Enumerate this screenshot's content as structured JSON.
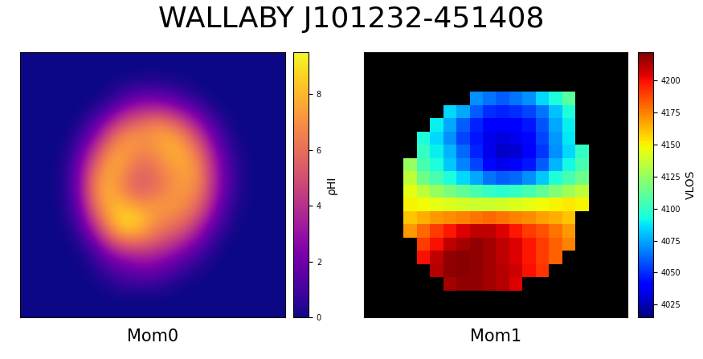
{
  "title": "WALLABY J101232-451408",
  "chart_data": [
    {
      "type": "heatmap",
      "xlabel": "Mom0",
      "colorbar_label": "ρHI",
      "color": "plasma",
      "tick_labels": false,
      "colorbar_range": [
        0,
        9.5
      ],
      "colorbar_ticks": [
        0,
        2,
        4,
        6,
        8
      ],
      "cells": [
        [
          0,
          0,
          0,
          0,
          0,
          0,
          0,
          0,
          0,
          0,
          0,
          0,
          0,
          0,
          0,
          0,
          0,
          0,
          0,
          0
        ],
        [
          0,
          0,
          0,
          0,
          0,
          0,
          0,
          0,
          0,
          0,
          0,
          0,
          0,
          0,
          0,
          0,
          0,
          0,
          0,
          0
        ],
        [
          0,
          0,
          0,
          0,
          0,
          0,
          0,
          0.2,
          0.5,
          0.6,
          0.6,
          0.4,
          0.2,
          0,
          0,
          0,
          0,
          0,
          0,
          0
        ],
        [
          0,
          0,
          0,
          0,
          0,
          0,
          0.3,
          1.0,
          1.8,
          2.2,
          2.0,
          1.6,
          1.0,
          0.4,
          0,
          0,
          0,
          0,
          0,
          0
        ],
        [
          0,
          0,
          0,
          0,
          0,
          0.4,
          1.4,
          2.8,
          3.8,
          4.2,
          4.4,
          3.8,
          2.8,
          1.6,
          0.5,
          0,
          0,
          0,
          0,
          0
        ],
        [
          0,
          0,
          0,
          0,
          0.3,
          1.4,
          3.2,
          5.0,
          5.8,
          6.4,
          6.8,
          6.2,
          5.0,
          3.2,
          1.4,
          0.3,
          0,
          0,
          0,
          0
        ],
        [
          0,
          0,
          0,
          0,
          0.8,
          2.6,
          5.0,
          6.6,
          7.2,
          7.0,
          7.4,
          7.6,
          6.6,
          4.8,
          2.4,
          0.8,
          0,
          0,
          0,
          0
        ],
        [
          0,
          0,
          0,
          0.2,
          1.6,
          4.0,
          6.4,
          7.4,
          7.0,
          6.6,
          7.2,
          7.8,
          7.4,
          6.0,
          3.4,
          1.2,
          0.2,
          0,
          0,
          0
        ],
        [
          0,
          0,
          0,
          0.3,
          2.2,
          5.2,
          7.2,
          7.6,
          6.4,
          6.0,
          6.6,
          7.4,
          7.6,
          6.6,
          4.0,
          1.6,
          0.3,
          0,
          0,
          0
        ],
        [
          0,
          0,
          0,
          0.4,
          2.6,
          6.0,
          7.6,
          7.0,
          5.8,
          5.6,
          6.2,
          7.0,
          7.4,
          6.8,
          4.2,
          1.8,
          0.4,
          0,
          0,
          0
        ],
        [
          0,
          0,
          0,
          0.4,
          2.6,
          6.2,
          7.8,
          7.2,
          6.0,
          5.8,
          6.4,
          7.0,
          7.2,
          6.4,
          4.0,
          1.6,
          0.3,
          0,
          0,
          0
        ],
        [
          0,
          0,
          0,
          0.3,
          2.2,
          5.6,
          7.6,
          8.0,
          7.4,
          7.0,
          7.2,
          7.2,
          6.8,
          5.8,
          3.4,
          1.2,
          0.2,
          0,
          0,
          0
        ],
        [
          0,
          0,
          0,
          0.2,
          1.6,
          4.6,
          7.0,
          8.6,
          8.8,
          7.8,
          7.0,
          6.6,
          6.0,
          4.6,
          2.4,
          0.8,
          0,
          0,
          0,
          0
        ],
        [
          0,
          0,
          0,
          0,
          0.8,
          3.0,
          5.8,
          7.6,
          8.0,
          7.2,
          6.2,
          5.6,
          4.8,
          3.2,
          1.4,
          0.4,
          0,
          0,
          0,
          0
        ],
        [
          0,
          0,
          0,
          0,
          0.3,
          1.6,
          3.6,
          5.2,
          5.6,
          5.4,
          4.8,
          4.0,
          3.0,
          1.8,
          0.6,
          0,
          0,
          0,
          0,
          0
        ],
        [
          0,
          0,
          0,
          0,
          0,
          0.6,
          1.8,
          2.8,
          3.2,
          3.4,
          3.0,
          2.4,
          1.6,
          0.8,
          0.2,
          0,
          0,
          0,
          0,
          0
        ],
        [
          0,
          0,
          0,
          0,
          0,
          0.2,
          0.8,
          1.4,
          1.8,
          2.0,
          1.8,
          1.2,
          0.6,
          0.2,
          0,
          0,
          0,
          0,
          0,
          0
        ],
        [
          0,
          0,
          0,
          0,
          0,
          0,
          0.2,
          0.6,
          0.8,
          0.8,
          0.6,
          0.3,
          0,
          0,
          0,
          0,
          0,
          0,
          0,
          0
        ],
        [
          0,
          0,
          0,
          0,
          0,
          0,
          0,
          0,
          0,
          0,
          0,
          0,
          0,
          0,
          0,
          0,
          0,
          0,
          0,
          0
        ],
        [
          0,
          0,
          0,
          0,
          0,
          0,
          0,
          0,
          0,
          0,
          0,
          0,
          0,
          0,
          0,
          0,
          0,
          0,
          0,
          0
        ]
      ]
    },
    {
      "type": "heatmap",
      "xlabel": "Mom1",
      "colorbar_label": "VLOS",
      "color": "jet",
      "tick_labels": false,
      "colorbar_range": [
        4015,
        4222
      ],
      "colorbar_ticks": [
        4025,
        4050,
        4075,
        4100,
        4125,
        4150,
        4175,
        4200
      ],
      "cells": [
        [
          null,
          null,
          null,
          null,
          null,
          null,
          null,
          null,
          null,
          null,
          null,
          null,
          null,
          null,
          null,
          null,
          null,
          null,
          null,
          null
        ],
        [
          null,
          null,
          null,
          null,
          null,
          null,
          null,
          null,
          null,
          null,
          null,
          null,
          null,
          null,
          null,
          null,
          null,
          null,
          null,
          null
        ],
        [
          null,
          null,
          null,
          null,
          null,
          null,
          null,
          null,
          null,
          null,
          null,
          null,
          null,
          null,
          null,
          null,
          null,
          null,
          null,
          null
        ],
        [
          null,
          null,
          null,
          null,
          null,
          null,
          null,
          null,
          4070,
          4065,
          4060,
          4065,
          4070,
          4085,
          4095,
          4110,
          null,
          null,
          null,
          null
        ],
        [
          null,
          null,
          null,
          null,
          null,
          null,
          4085,
          4075,
          4060,
          4050,
          4048,
          4050,
          4055,
          4065,
          4080,
          4095,
          null,
          null,
          null,
          null
        ],
        [
          null,
          null,
          null,
          null,
          null,
          4090,
          4075,
          4060,
          4048,
          4040,
          4038,
          4040,
          4045,
          4058,
          4075,
          4090,
          null,
          null,
          null,
          null
        ],
        [
          null,
          null,
          null,
          null,
          4095,
          4085,
          4070,
          4055,
          4045,
          4035,
          4032,
          4035,
          4042,
          4055,
          4072,
          4088,
          null,
          null,
          null,
          null
        ],
        [
          null,
          null,
          null,
          null,
          4100,
          4090,
          4078,
          4062,
          4048,
          4035,
          4028,
          4030,
          4038,
          4052,
          4070,
          4085,
          4100,
          null,
          null,
          null
        ],
        [
          null,
          null,
          null,
          4125,
          4105,
          4095,
          4082,
          4068,
          4055,
          4042,
          4035,
          4038,
          4045,
          4060,
          4078,
          4092,
          4105,
          null,
          null,
          null
        ],
        [
          null,
          null,
          null,
          4135,
          4115,
          4105,
          4095,
          4085,
          4075,
          4065,
          4060,
          4062,
          4070,
          4082,
          4095,
          4105,
          4115,
          null,
          null,
          null
        ],
        [
          null,
          null,
          null,
          4145,
          4135,
          4125,
          4118,
          4112,
          4105,
          4100,
          4098,
          4100,
          4105,
          4112,
          4120,
          4128,
          4135,
          null,
          null,
          null
        ],
        [
          null,
          null,
          null,
          4150,
          4148,
          4145,
          4142,
          4140,
          4138,
          4138,
          4140,
          4142,
          4145,
          4148,
          4150,
          4152,
          4150,
          null,
          null,
          null
        ],
        [
          null,
          null,
          null,
          4160,
          4165,
          4170,
          4172,
          4175,
          4178,
          4180,
          4178,
          4175,
          4172,
          4168,
          4165,
          4160,
          null,
          null,
          null,
          null
        ],
        [
          null,
          null,
          null,
          4170,
          4180,
          4190,
          4198,
          4205,
          4210,
          4210,
          4205,
          4198,
          4190,
          4185,
          4178,
          4170,
          null,
          null,
          null,
          null
        ],
        [
          null,
          null,
          null,
          null,
          4190,
          4200,
          4210,
          4215,
          4218,
          4215,
          4210,
          4205,
          4198,
          4190,
          4182,
          4175,
          null,
          null,
          null,
          null
        ],
        [
          null,
          null,
          null,
          null,
          4200,
          4210,
          4218,
          4220,
          4218,
          4215,
          4210,
          4205,
          4198,
          4190,
          4182,
          null,
          null,
          null,
          null,
          null
        ],
        [
          null,
          null,
          null,
          null,
          null,
          4212,
          4218,
          4220,
          4218,
          4215,
          4212,
          4208,
          4200,
          4192,
          null,
          null,
          null,
          null,
          null,
          null
        ],
        [
          null,
          null,
          null,
          null,
          null,
          null,
          4215,
          4218,
          4218,
          4215,
          4212,
          4205,
          null,
          null,
          null,
          null,
          null,
          null,
          null,
          null
        ],
        [
          null,
          null,
          null,
          null,
          null,
          null,
          null,
          null,
          null,
          null,
          null,
          null,
          null,
          null,
          null,
          null,
          null,
          null,
          null,
          null
        ],
        [
          null,
          null,
          null,
          null,
          null,
          null,
          null,
          null,
          null,
          null,
          null,
          null,
          null,
          null,
          null,
          null,
          null,
          null,
          null,
          null
        ]
      ]
    }
  ]
}
